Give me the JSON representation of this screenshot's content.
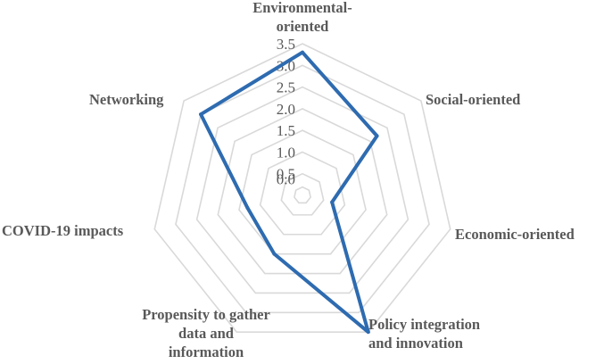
{
  "chart_data": {
    "type": "radar",
    "categories": [
      "Environmental-oriented",
      "Social-oriented",
      "Economic-oriented",
      "Policy integration and innovation",
      "Propensity to gather data and information",
      "COVID-19 impacts",
      "Networking"
    ],
    "category_label_lines": [
      [
        "Environmental-",
        "oriented"
      ],
      [
        "Social-oriented"
      ],
      [
        "Economic-oriented"
      ],
      [
        "Policy integration",
        "and innovation"
      ],
      [
        "Propensity to gather",
        "data and",
        "information"
      ],
      [
        "COVID-19 impacts"
      ],
      [
        "Networking"
      ]
    ],
    "series": [
      {
        "values": [
          3.3,
          2.2,
          0.7,
          3.5,
          1.5,
          1.3,
          3.0
        ]
      }
    ],
    "rlim": [
      0,
      3.5
    ],
    "ticks": [
      "0.0",
      "0.5",
      "1.0",
      "1.5",
      "2.0",
      "2.5",
      "3.0",
      "3.5"
    ],
    "grid": true,
    "legend": "none",
    "colors": {
      "series": "#2e6bb0",
      "grid": "#d9d9d9",
      "text": "#595959"
    }
  }
}
